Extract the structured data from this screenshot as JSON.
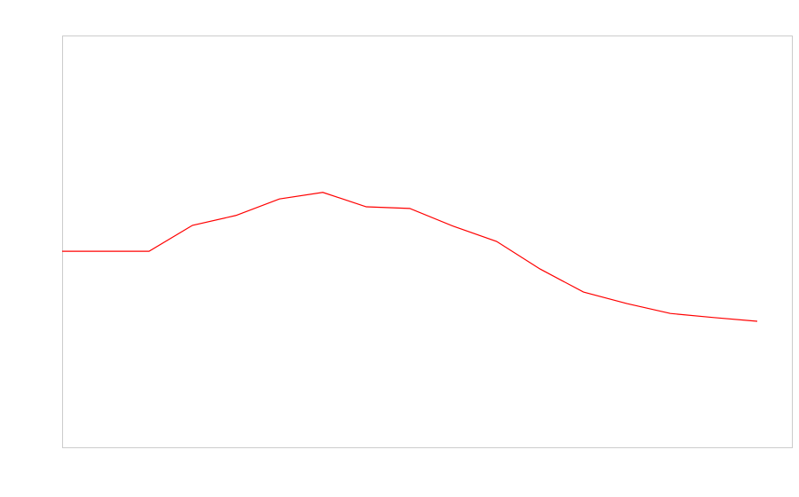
{
  "chart_data": {
    "type": "line",
    "categories": [
      null,
      null,
      null,
      null,
      null,
      null,
      null,
      null,
      null,
      null,
      null,
      null,
      null,
      null,
      null,
      null,
      null
    ],
    "series": [
      {
        "color": "#ff0000",
        "values": [
          47.6,
          47.6,
          47.6,
          53.9,
          56.3,
          60.3,
          61.9,
          58.4,
          58.0,
          53.7,
          50.0,
          43.3,
          37.7,
          34.9,
          32.5,
          31.5,
          30.6
        ]
      }
    ],
    "ylim": [
      0,
      100
    ]
  }
}
